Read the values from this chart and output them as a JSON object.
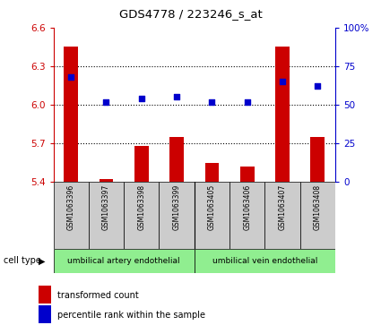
{
  "title": "GDS4778 / 223246_s_at",
  "samples": [
    "GSM1063396",
    "GSM1063397",
    "GSM1063398",
    "GSM1063399",
    "GSM1063405",
    "GSM1063406",
    "GSM1063407",
    "GSM1063408"
  ],
  "transformed_counts": [
    6.45,
    5.42,
    5.68,
    5.75,
    5.55,
    5.52,
    6.45,
    5.75
  ],
  "percentile_ranks": [
    68,
    52,
    54,
    55,
    52,
    52,
    65,
    62
  ],
  "ylim_left": [
    5.4,
    6.6
  ],
  "ylim_right": [
    0,
    100
  ],
  "yticks_left": [
    5.4,
    5.7,
    6.0,
    6.3,
    6.6
  ],
  "yticks_right": [
    0,
    25,
    50,
    75,
    100
  ],
  "ytick_labels_right": [
    "0",
    "25",
    "50",
    "75",
    "100%"
  ],
  "bar_color": "#cc0000",
  "dot_color": "#0000cc",
  "bar_width": 0.4,
  "cell_type_labels": [
    "umbilical artery endothelial",
    "umbilical vein endothelial"
  ],
  "cell_type_color": "#90ee90",
  "cell_type_header": "cell type",
  "legend_bar_label": "transformed count",
  "legend_dot_label": "percentile rank within the sample",
  "left_axis_color": "#cc0000",
  "right_axis_color": "#0000cc",
  "sample_box_color": "#cccccc",
  "hgrid_vals": [
    5.7,
    6.0,
    6.3
  ],
  "hgrid_color": "#000000"
}
